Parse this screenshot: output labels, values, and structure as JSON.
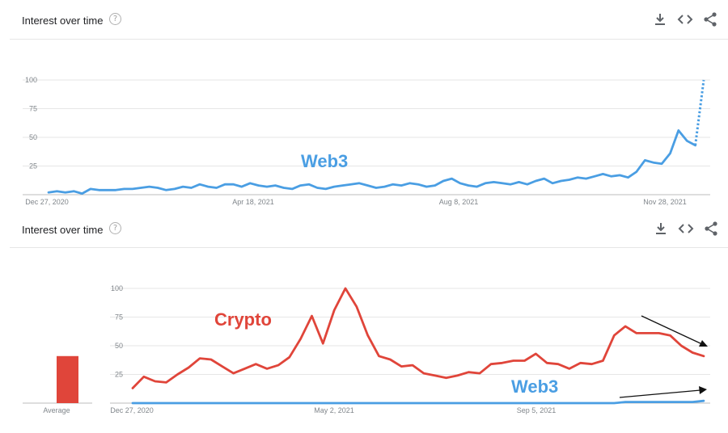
{
  "panels": [
    {
      "header": {
        "title": "Interest over time",
        "help_glyph": "?",
        "icons": [
          "download-icon",
          "embed-code-icon",
          "share-icon"
        ]
      },
      "colors": {
        "web3": "#4a9ee3",
        "crypto": "#e0453a",
        "grid": "#e6e6e6",
        "axis": "#bdbdbd"
      },
      "annotation": "Web3"
    },
    {
      "header": {
        "title": "Interest over time",
        "help_glyph": "?",
        "icons": [
          "download-icon",
          "embed-code-icon",
          "share-icon"
        ]
      },
      "annotations": {
        "crypto": "Crypto",
        "web3": "Web3"
      },
      "average_label": "Average"
    }
  ],
  "chart_data": [
    {
      "type": "line",
      "title": "",
      "xlabel": "",
      "ylabel": "",
      "ylim": [
        0,
        100
      ],
      "yticks": [
        "100",
        "75",
        "50",
        "25"
      ],
      "xtick_labels": [
        "Dec 27, 2020",
        "Apr 18, 2021",
        "Aug 8, 2021",
        "Nov 28, 2021"
      ],
      "grid": true,
      "series": [
        {
          "name": "Web3",
          "values": [
            2,
            3,
            2,
            3,
            1,
            5,
            4,
            4,
            4,
            5,
            5,
            6,
            7,
            6,
            4,
            5,
            7,
            6,
            9,
            7,
            6,
            9,
            9,
            7,
            10,
            8,
            7,
            8,
            6,
            5,
            8,
            9,
            6,
            5,
            7,
            8,
            9,
            10,
            8,
            6,
            7,
            9,
            8,
            10,
            9,
            7,
            8,
            12,
            14,
            10,
            8,
            7,
            10,
            11,
            10,
            9,
            11,
            9,
            12,
            14,
            10,
            12,
            13,
            15,
            14,
            16,
            18,
            16,
            17,
            15,
            20,
            30,
            28,
            27,
            36,
            56,
            47,
            43,
            100
          ],
          "projected_from_index": 77
        }
      ]
    },
    {
      "type": "line",
      "title": "",
      "xlabel": "",
      "ylabel": "",
      "ylim": [
        0,
        100
      ],
      "yticks": [
        "100",
        "75",
        "50",
        "25"
      ],
      "xtick_labels": [
        "Dec 27, 2020",
        "May 2, 2021",
        "Sep 5, 2021"
      ],
      "grid": true,
      "series": [
        {
          "name": "Crypto",
          "values": [
            13,
            23,
            19,
            18,
            25,
            31,
            39,
            38,
            32,
            26,
            30,
            34,
            30,
            33,
            40,
            56,
            76,
            52,
            81,
            100,
            84,
            59,
            41,
            38,
            32,
            33,
            26,
            24,
            22,
            24,
            27,
            26,
            34,
            35,
            37,
            37,
            43,
            35,
            34,
            30,
            35,
            34,
            37,
            59,
            67,
            61,
            61,
            61,
            59,
            50,
            44,
            41
          ]
        },
        {
          "name": "Web3",
          "values": [
            0,
            0,
            0,
            0,
            0,
            0,
            0,
            0,
            0,
            0,
            0,
            0,
            0,
            0,
            0,
            0,
            0,
            0,
            0,
            0,
            0,
            0,
            0,
            0,
            0,
            0,
            0,
            0,
            0,
            0,
            0,
            0,
            0,
            0,
            0,
            0,
            0,
            0,
            0,
            0,
            0,
            0,
            0,
            0,
            1,
            1,
            1,
            1,
            1,
            1,
            1,
            2
          ]
        }
      ],
      "average": {
        "category": "Average",
        "Crypto": 41
      }
    }
  ]
}
